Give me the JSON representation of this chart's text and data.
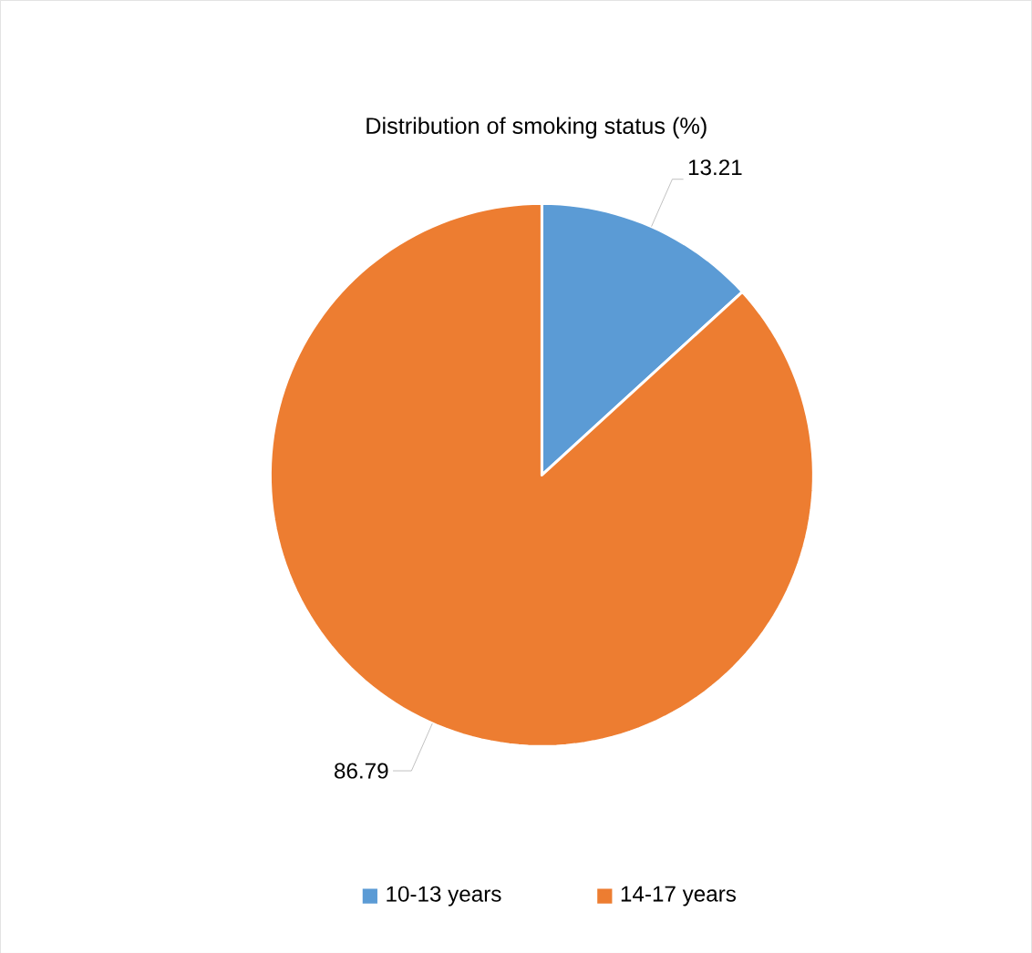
{
  "chart_data": {
    "type": "pie",
    "title": "Distribution of smoking status (%)",
    "categories": [
      "10-13 years",
      "14-17 years"
    ],
    "values": [
      13.21,
      86.79
    ],
    "colors": [
      "#5b9bd5",
      "#ed7d31"
    ],
    "data_labels": true,
    "legend": "bottom"
  }
}
